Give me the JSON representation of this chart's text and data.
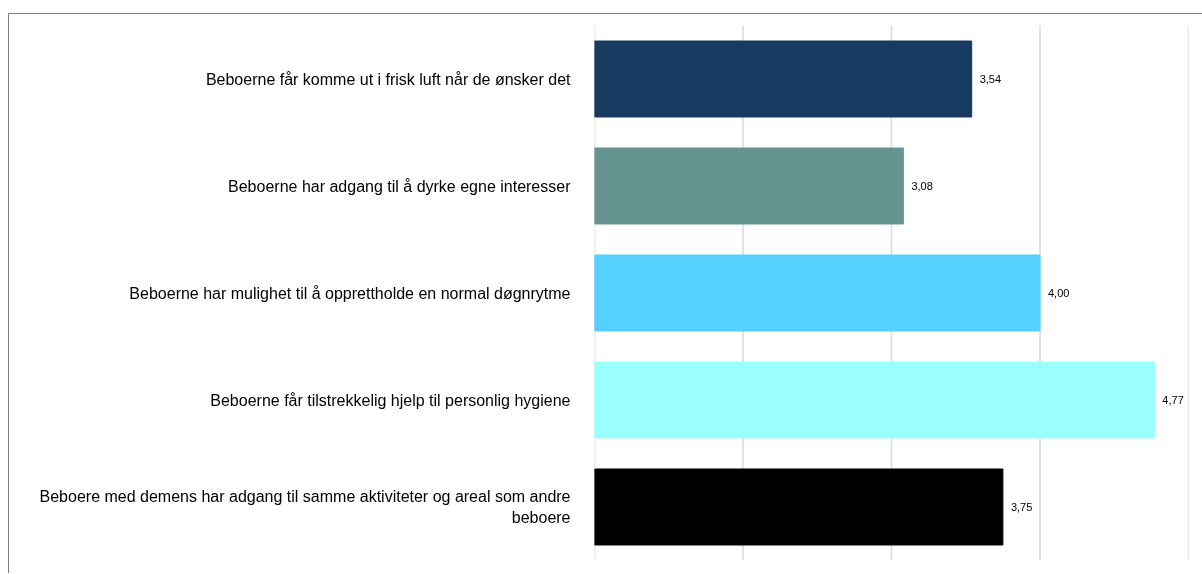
{
  "chart_data": {
    "type": "bar",
    "orientation": "horizontal",
    "categories": [
      "Beboerne får komme ut i frisk luft når de ønsker det",
      "Beboerne har adgang til å dyrke egne interesser",
      "Beboerne har mulighet til å opprettholde en normal døgnrytme",
      "Beboerne får tilstrekkelig hjelp til personlig hygiene",
      "Beboere med demens har adgang til samme aktiviteter og areal som andre beboere"
    ],
    "values": [
      3.54,
      3.08,
      4.0,
      4.77,
      3.75
    ],
    "value_labels": [
      "3,54",
      "3,08",
      "4,00",
      "4,77",
      "3,75"
    ],
    "colors": [
      "#183a60",
      "#669490",
      "#55d0ff",
      "#99ffff",
      "#000000"
    ],
    "xlim": [
      1,
      5
    ],
    "xticks": [
      {
        "value": 1,
        "label": null
      },
      {
        "value": 2,
        "label": null
      },
      {
        "value": 3,
        "label": null
      },
      {
        "value": 4,
        "label": null
      },
      {
        "value": 5,
        "label": null
      }
    ],
    "tick_labels": "y",
    "grid": "x"
  }
}
